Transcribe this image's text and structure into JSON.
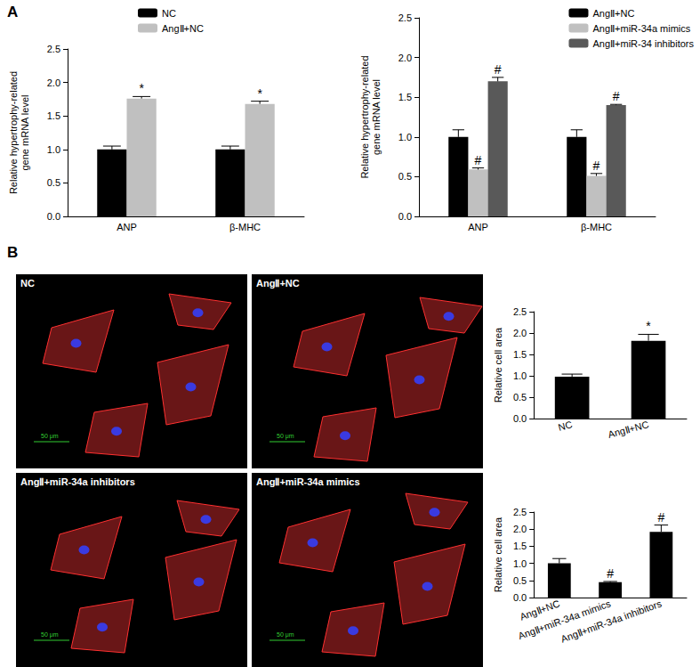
{
  "panel_labels": [
    "A",
    "B"
  ],
  "chart_data": [
    {
      "type": "bar",
      "categories": [
        "ANP",
        "β-MHC"
      ],
      "y_label": "Relative hypertrophy-related\ngene mRNA level",
      "ylim": [
        0,
        2.5
      ],
      "yticks": [
        {
          "value": 0,
          "label": "0.0"
        },
        0.5,
        {
          "value": 1,
          "label": "1.0"
        },
        1.5,
        {
          "value": 2,
          "label": "2.0"
        },
        2.5
      ],
      "grid": false,
      "legend": "top",
      "series": [
        {
          "name": "NC",
          "color": "#000000",
          "values": [
            1.0,
            1.0
          ],
          "errors": [
            0.05,
            0.05
          ],
          "annotations": [
            null,
            null
          ]
        },
        {
          "name": "AngⅡ+NC",
          "color": "#c0c0c0",
          "values": [
            1.76,
            1.68
          ],
          "errors": [
            0.03,
            0.04
          ],
          "annotations": [
            "*",
            "*"
          ]
        }
      ]
    },
    {
      "type": "bar",
      "categories": [
        "ANP",
        "β-MHC"
      ],
      "y_label": "Relative hypertrophy-related\ngene mRNA level",
      "ylim": [
        0,
        2.5
      ],
      "yticks": [
        {
          "value": 0,
          "label": "0.0"
        },
        0.5,
        {
          "value": 1,
          "label": "1.0"
        },
        1.5,
        {
          "value": 2,
          "label": "2.0"
        },
        2.5
      ],
      "grid": false,
      "legend": "upper right",
      "series": [
        {
          "name": "AngⅡ+NC",
          "color": "#000000",
          "values": [
            1.0,
            1.0
          ],
          "errors": [
            0.09,
            0.09
          ],
          "annotations": [
            null,
            null
          ]
        },
        {
          "name": "AngⅡ+miR-34a mimics",
          "color": "#c0c0c0",
          "values": [
            0.59,
            0.51
          ],
          "errors": [
            0.02,
            0.03
          ],
          "annotations": [
            "#",
            "#"
          ]
        },
        {
          "name": "AngⅡ+miR-34 inhibitors",
          "color": "#595959",
          "values": [
            1.7,
            1.4
          ],
          "errors": [
            0.05,
            0.01
          ],
          "annotations": [
            "#",
            "#"
          ]
        }
      ]
    },
    {
      "type": "bar",
      "categories": [
        "NC",
        "AngⅡ+NC"
      ],
      "y_label": "Relative cell area",
      "ylim": [
        0,
        2.5
      ],
      "yticks": [
        {
          "value": 0,
          "label": "0.0"
        },
        0.5,
        {
          "value": 1,
          "label": "1.0"
        },
        1.5,
        {
          "value": 2,
          "label": "2.0"
        },
        2.5
      ],
      "grid": false,
      "color": "#000000",
      "values": [
        0.98,
        1.82
      ],
      "errors": [
        0.06,
        0.15
      ],
      "annotations": [
        null,
        "*"
      ]
    },
    {
      "type": "bar",
      "categories": [
        "AngⅡ+NC",
        "AngⅡ+miR-34a mimics",
        "AngⅡ+miR-34a inhibitors"
      ],
      "y_label": "Relative cell area",
      "ylim": [
        0,
        2.5
      ],
      "yticks": [
        {
          "value": 0,
          "label": "0.0"
        },
        0.5,
        {
          "value": 1,
          "label": "1.0"
        },
        1.5,
        {
          "value": 2,
          "label": "2.0"
        },
        2.5
      ],
      "grid": false,
      "color": "#000000",
      "values": [
        1.0,
        0.45,
        1.92
      ],
      "errors": [
        0.14,
        0.02,
        0.2
      ],
      "annotations": [
        null,
        "#",
        "#"
      ]
    }
  ],
  "images": {
    "scale_bar": "50 μm",
    "panels": [
      {
        "label": "NC"
      },
      {
        "label": "AngⅡ+NC"
      },
      {
        "label": "AngⅡ+miR-34a inhibitors"
      },
      {
        "label": "AngⅡ+miR-34a mimics"
      }
    ]
  }
}
